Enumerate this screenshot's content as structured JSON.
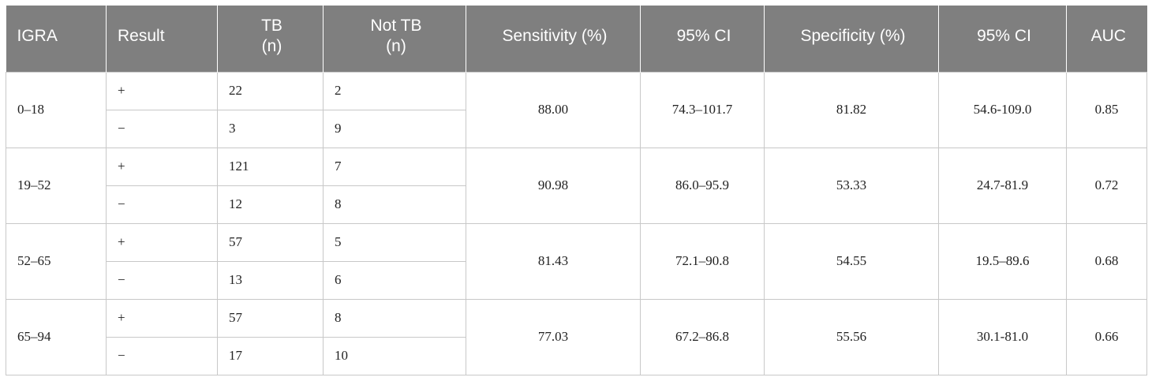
{
  "table": {
    "headers": [
      {
        "lines": [
          "IGRA"
        ],
        "align": "left"
      },
      {
        "lines": [
          "Result"
        ],
        "align": "left"
      },
      {
        "lines": [
          "TB",
          "(n)"
        ],
        "align": "center"
      },
      {
        "lines": [
          "Not TB",
          "(n)"
        ],
        "align": "center"
      },
      {
        "lines": [
          "Sensitivity (%)"
        ],
        "align": "center"
      },
      {
        "lines": [
          "95% CI"
        ],
        "align": "center"
      },
      {
        "lines": [
          "Specificity (%)"
        ],
        "align": "center"
      },
      {
        "lines": [
          "95% CI"
        ],
        "align": "center"
      },
      {
        "lines": [
          "AUC"
        ],
        "align": "center"
      }
    ],
    "groups": [
      {
        "igra": "0–18",
        "rows": [
          {
            "result": "+",
            "tb": "22",
            "not_tb": "2"
          },
          {
            "result": "−",
            "tb": "3",
            "not_tb": "9"
          }
        ],
        "sensitivity": "88.00",
        "sens_ci": "74.3–101.7",
        "specificity": "81.82",
        "spec_ci": "54.6-109.0",
        "auc": "0.85"
      },
      {
        "igra": "19–52",
        "rows": [
          {
            "result": "+",
            "tb": "121",
            "not_tb": "7"
          },
          {
            "result": "−",
            "tb": "12",
            "not_tb": "8"
          }
        ],
        "sensitivity": "90.98",
        "sens_ci": "86.0–95.9",
        "specificity": "53.33",
        "spec_ci": "24.7-81.9",
        "auc": "0.72"
      },
      {
        "igra": "52–65",
        "rows": [
          {
            "result": "+",
            "tb": "57",
            "not_tb": "5"
          },
          {
            "result": "−",
            "tb": "13",
            "not_tb": "6"
          }
        ],
        "sensitivity": "81.43",
        "sens_ci": "72.1–90.8",
        "specificity": "54.55",
        "spec_ci": "19.5–89.6",
        "auc": "0.68"
      },
      {
        "igra": "65–94",
        "rows": [
          {
            "result": "+",
            "tb": "57",
            "not_tb": "8"
          },
          {
            "result": "−",
            "tb": "17",
            "not_tb": "10"
          }
        ],
        "sensitivity": "77.03",
        "sens_ci": "67.2–86.8",
        "specificity": "55.56",
        "spec_ci": "30.1-81.0",
        "auc": "0.66"
      }
    ]
  }
}
